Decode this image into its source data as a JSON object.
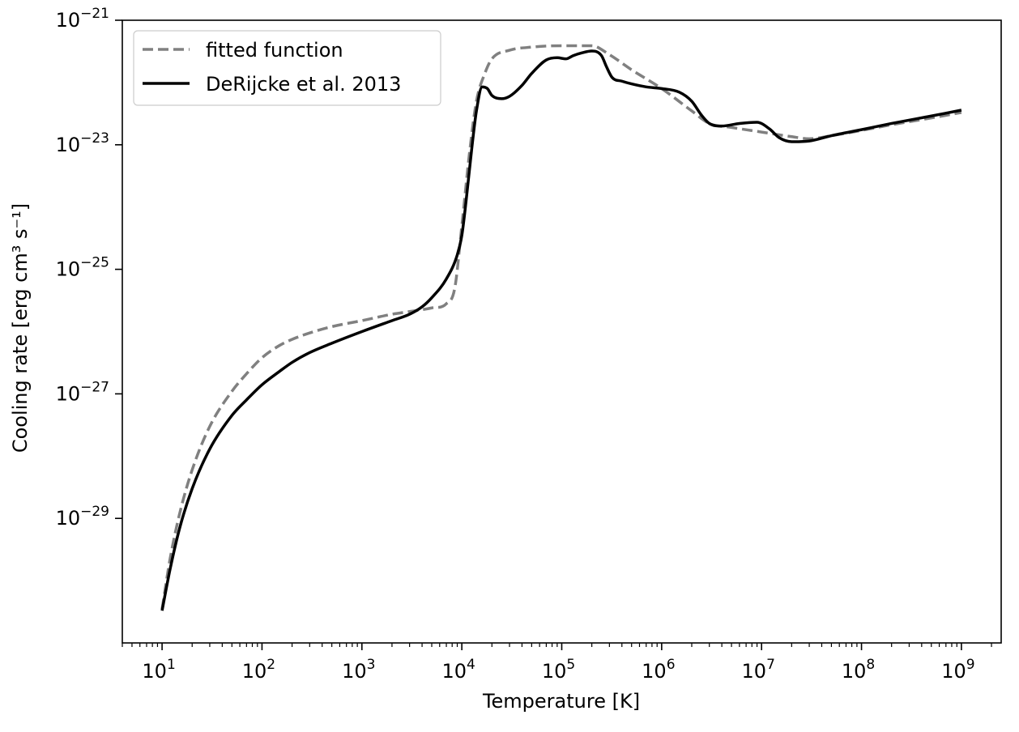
{
  "chart_data": {
    "type": "line",
    "xlabel": "Temperature [K]",
    "ylabel": "Cooling rate [erg cm³ s⁻¹]",
    "xscale": "log",
    "yscale": "log",
    "xlim": [
      4,
      2500000000.0
    ],
    "ylim": [
      1e-31,
      1e-21
    ],
    "grid": false,
    "legend_position": "top-left",
    "x_ticks": [
      {
        "value": 10.0,
        "base": "10",
        "exp": "1"
      },
      {
        "value": 100.0,
        "base": "10",
        "exp": "2"
      },
      {
        "value": 1000.0,
        "base": "10",
        "exp": "3"
      },
      {
        "value": 10000.0,
        "base": "10",
        "exp": "4"
      },
      {
        "value": 100000.0,
        "base": "10",
        "exp": "5"
      },
      {
        "value": 1000000.0,
        "base": "10",
        "exp": "6"
      },
      {
        "value": 10000000.0,
        "base": "10",
        "exp": "7"
      },
      {
        "value": 100000000.0,
        "base": "10",
        "exp": "8"
      },
      {
        "value": 1000000000.0,
        "base": "10",
        "exp": "9"
      }
    ],
    "y_ticks": [
      {
        "value": 1e-21,
        "base": "10",
        "exp": "−21"
      },
      {
        "value": 1e-23,
        "base": "10",
        "exp": "−23"
      },
      {
        "value": 1e-25,
        "base": "10",
        "exp": "−25"
      },
      {
        "value": 1e-27,
        "base": "10",
        "exp": "−27"
      },
      {
        "value": 1e-29,
        "base": "10",
        "exp": "−29"
      }
    ],
    "series": [
      {
        "name": "fitted function",
        "color": "#808080",
        "style": "dashed",
        "x": [
          10,
          12,
          15,
          20,
          30,
          50,
          70,
          100,
          150,
          200,
          300,
          500,
          1000,
          2000,
          3000,
          5000,
          7000,
          8500,
          10000,
          12000,
          14000,
          17000,
          20000,
          30000,
          50000,
          100000,
          200000,
          300000,
          500000,
          1000000,
          2000000,
          3000000,
          5000000,
          10000000,
          20000000,
          30000000,
          50000000,
          100000000,
          200000000,
          500000000,
          1000000000
        ],
        "y": [
          3.5e-31,
          2.2e-30,
          1.2e-29,
          6e-29,
          3e-28,
          1.1e-27,
          2.1e-27,
          3.8e-27,
          6e-27,
          7.5e-27,
          9.5e-27,
          1.2e-26,
          1.5e-26,
          1.9e-26,
          2.1e-26,
          2.4e-26,
          2.8e-26,
          5e-26,
          5e-25,
          8e-24,
          5e-23,
          1.4e-22,
          2.4e-22,
          3.3e-22,
          3.7e-22,
          3.9e-22,
          3.9e-22,
          2.8e-22,
          1.6e-22,
          8e-23,
          3.5e-23,
          2.2e-23,
          1.9e-23,
          1.6e-23,
          1.35e-23,
          1.25e-23,
          1.4e-23,
          1.7e-23,
          2.1e-23,
          2.7e-23,
          3.3e-23
        ]
      },
      {
        "name": "DeRijcke et al. 2013",
        "color": "#000000",
        "style": "solid",
        "x": [
          10,
          12,
          15,
          20,
          30,
          50,
          70,
          100,
          150,
          200,
          300,
          500,
          1000,
          2000,
          3000,
          4000,
          5000,
          7000,
          9000,
          10000,
          11000,
          12500,
          14000,
          16000,
          18000,
          20000,
          25000,
          30000,
          40000,
          50000,
          70000,
          90000,
          110000,
          130000,
          160000,
          200000,
          250000,
          280000,
          320000,
          400000,
          500000,
          700000,
          1000000,
          1500000,
          2000000,
          2500000,
          3000000,
          4000000,
          6000000,
          9000000,
          12000000,
          15000000,
          20000000,
          30000000,
          50000000,
          100000000,
          200000000,
          500000000,
          1000000000
        ],
        "y": [
          3.3e-31,
          1.5e-30,
          7e-30,
          3e-29,
          1.3e-28,
          4.5e-28,
          8e-28,
          1.4e-27,
          2.3e-27,
          3.2e-27,
          4.6e-27,
          6.5e-27,
          1e-26,
          1.5e-26,
          1.9e-26,
          2.5e-26,
          3.5e-26,
          7e-26,
          1.7e-25,
          3.5e-25,
          1.2e-24,
          8e-24,
          3.5e-23,
          8.5e-23,
          8e-23,
          6.2e-23,
          5.5e-23,
          6e-23,
          9e-23,
          1.4e-22,
          2.3e-22,
          2.5e-22,
          2.4e-22,
          2.7e-22,
          3e-22,
          3.2e-22,
          2.7e-22,
          1.8e-22,
          1.2e-22,
          1.05e-22,
          9.5e-23,
          8.5e-23,
          8e-23,
          7e-23,
          5e-23,
          3e-23,
          2.2e-23,
          2e-23,
          2.2e-23,
          2.3e-23,
          1.8e-23,
          1.3e-23,
          1.12e-23,
          1.15e-23,
          1.4e-23,
          1.75e-23,
          2.2e-23,
          2.9e-23,
          3.6e-23
        ]
      }
    ]
  }
}
